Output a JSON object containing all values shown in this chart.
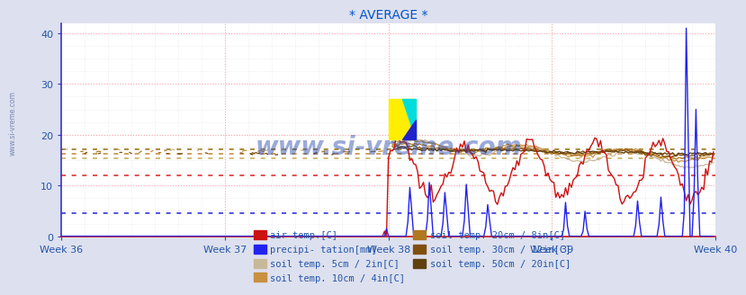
{
  "title": "* AVERAGE *",
  "title_color": "#0055cc",
  "background_color": "#dde0ee",
  "plot_bg_color": "#ffffff",
  "xlim": [
    0,
    336
  ],
  "ylim": [
    0,
    42
  ],
  "yticks": [
    0,
    10,
    20,
    30,
    40
  ],
  "xtick_positions": [
    0,
    84,
    168,
    252,
    336
  ],
  "xtick_labels": [
    "Week 36",
    "Week 37",
    "Week 38",
    "Week 39",
    "Week 40"
  ],
  "watermark": "www.si-vreme.com",
  "watermark_color": "#2244aa",
  "watermark_alpha": 0.45,
  "sidebar_text": "www.si-vreme.com",
  "n_points": 336,
  "avg_dotted_red_y": 12.0,
  "avg_dotted_blue_y": 4.5,
  "avg_dotted_gold1_y": 17.2,
  "avg_dotted_gold2_y": 16.2,
  "avg_dotted_gold3_y": 15.4,
  "series": {
    "air_temp": {
      "color": "#cc1111",
      "label": "air temp.[C]"
    },
    "precip": {
      "color": "#2222ee",
      "label": "precipi- tation[mm]"
    },
    "soil5": {
      "color": "#c8b89a",
      "label": "soil temp. 5cm / 2in[C]"
    },
    "soil10": {
      "color": "#c89040",
      "label": "soil temp. 10cm / 4in[C]"
    },
    "soil20": {
      "color": "#b07820",
      "label": "soil temp. 20cm / 8in[C]"
    },
    "soil30": {
      "color": "#805010",
      "label": "soil temp. 30cm / 12in[C]"
    },
    "soil50": {
      "color": "#604010",
      "label": "soil temp. 50cm / 20in[C]"
    }
  },
  "legend_text_color": "#2255aa",
  "axis_color": "#cc1111",
  "left_axis_color": "#3333cc"
}
